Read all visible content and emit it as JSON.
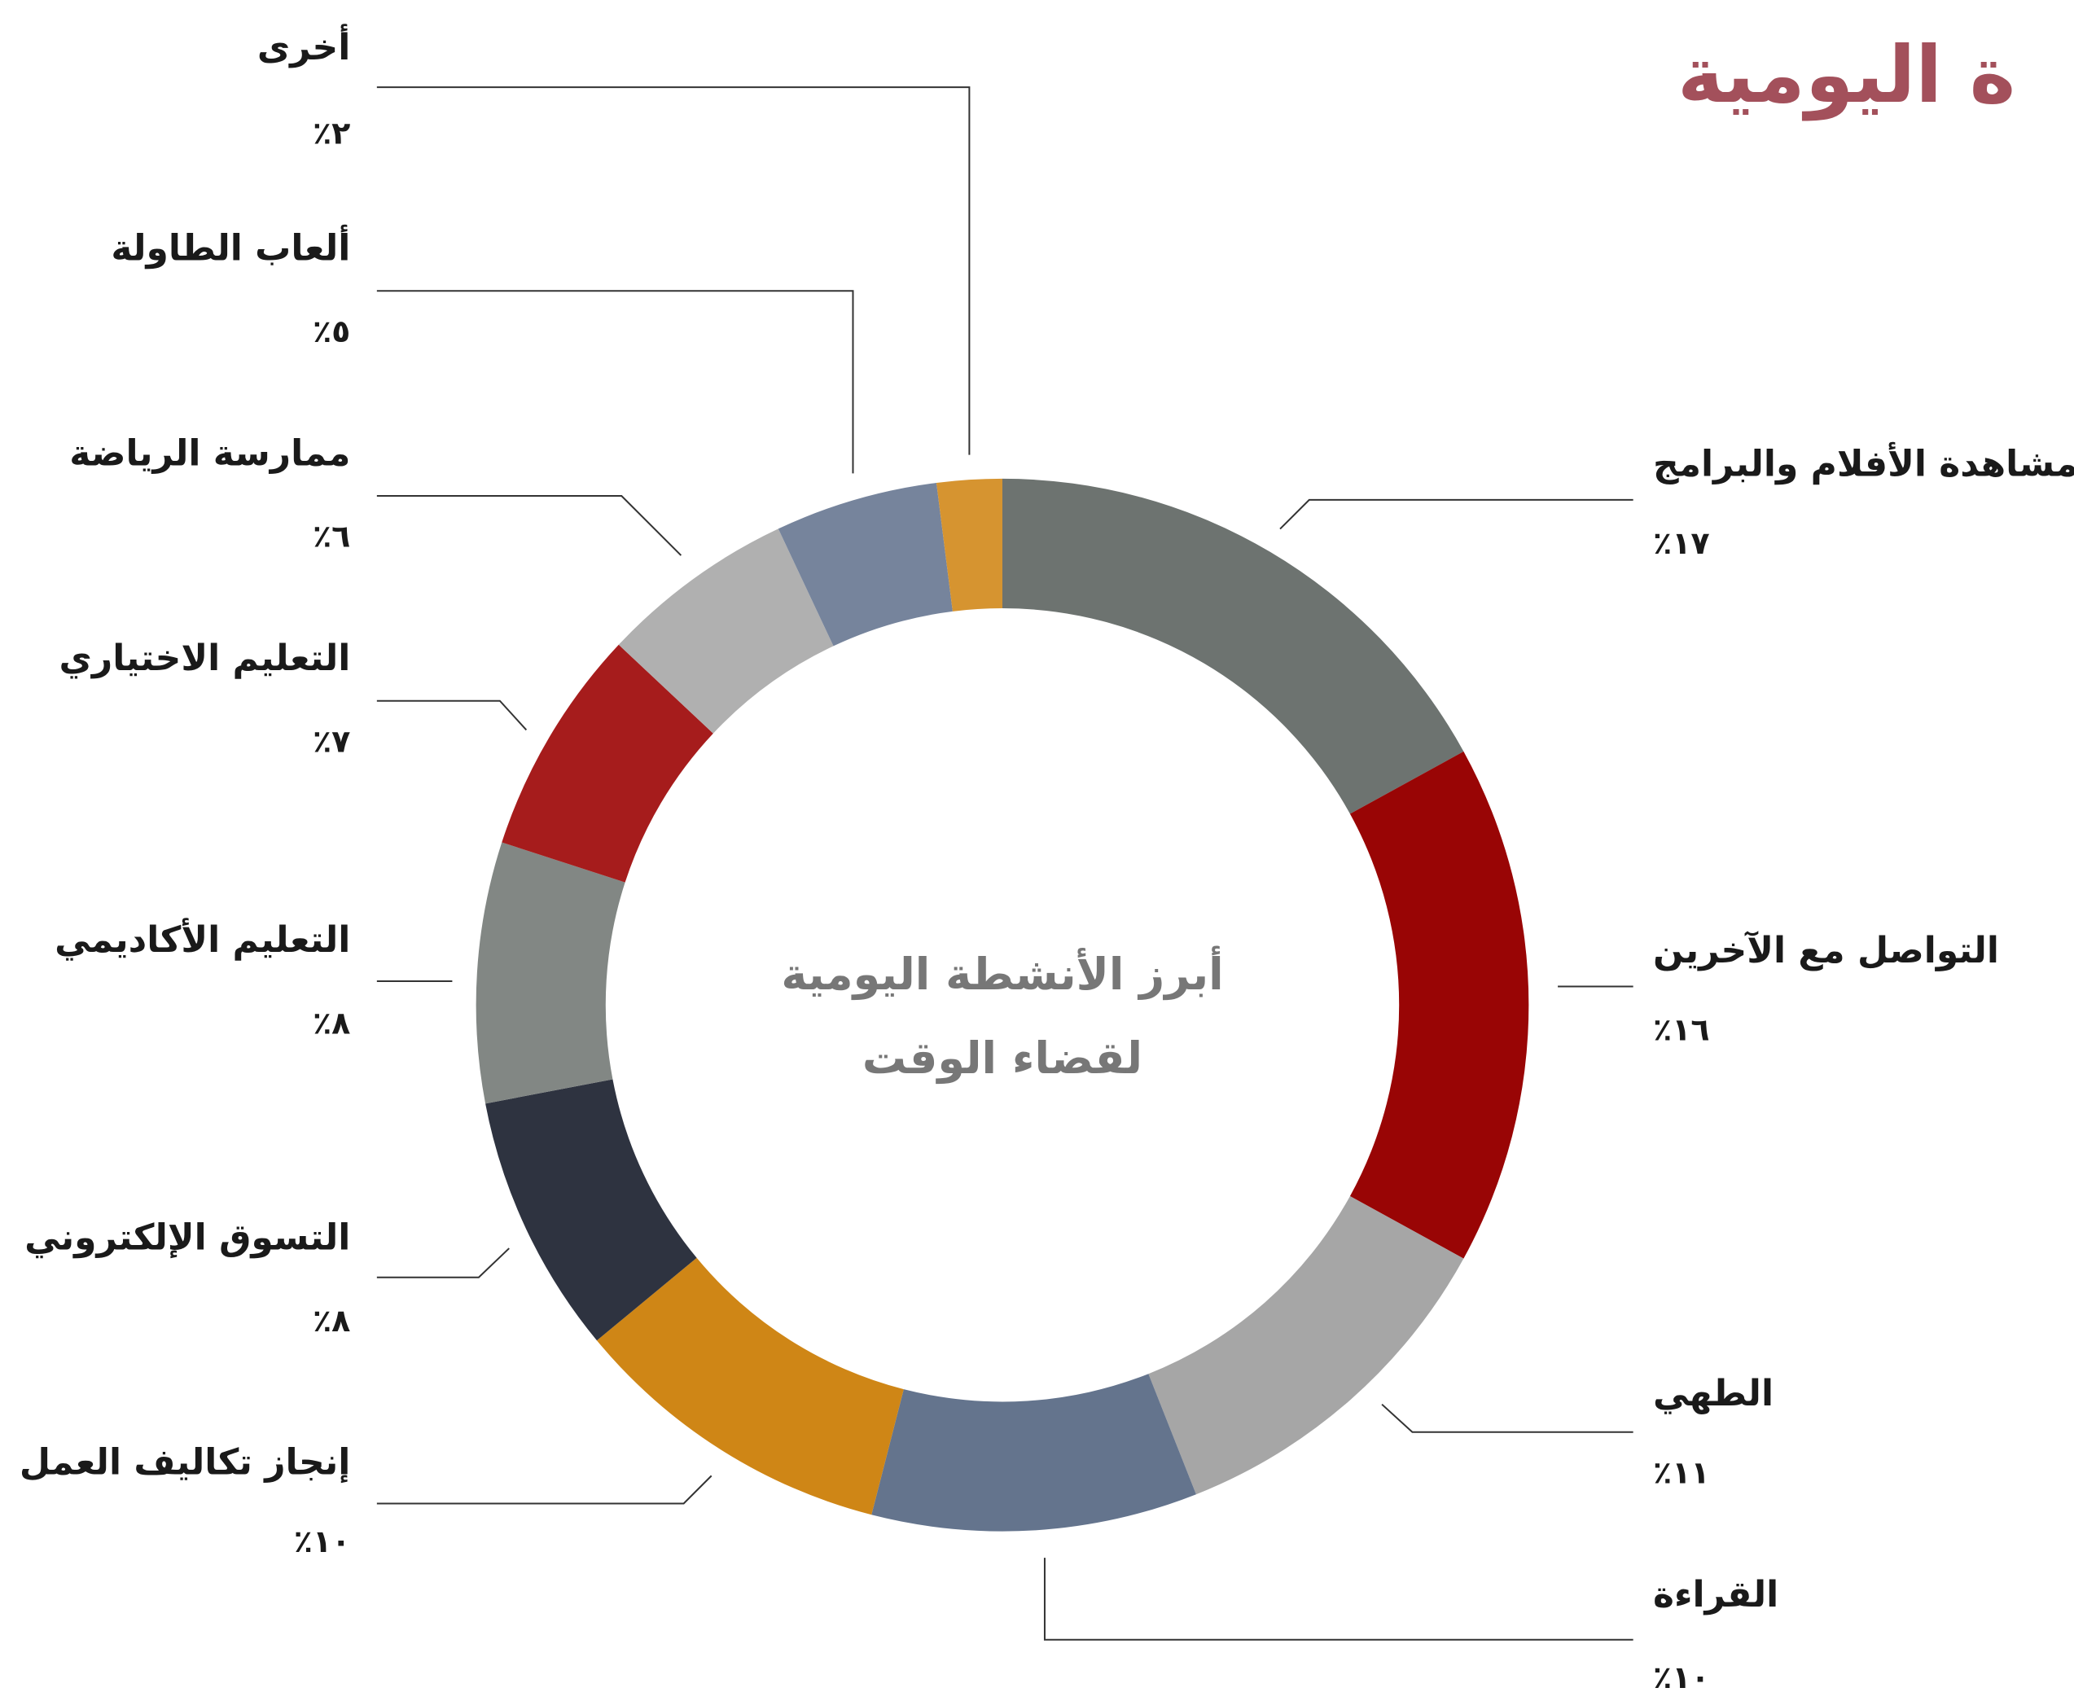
{
  "chart_data": {
    "type": "donut",
    "title": "ة اليومية",
    "center_label": [
      "أبرز الأنشطة اليومية",
      "لقضاء الوقت"
    ],
    "categories": [
      "مشاهدة الأفلام والبرامج",
      "التواصل مع الآخرين",
      "الطهي",
      "القراءة",
      "إنجاز تكاليف العمل",
      "التسوق الإلكتروني",
      "التعليم الأكاديمي",
      "التعليم الاختياري",
      "ممارسة الرياضة",
      "ألعاب الطاولة",
      "أخرى"
    ],
    "values": [
      17,
      16,
      11,
      10,
      10,
      8,
      8,
      7,
      6,
      5,
      2
    ],
    "value_labels": [
      "١٧٪",
      "١٦٪",
      "١١٪",
      "١٠٪",
      "١٠٪",
      "٨٪",
      "٨٪",
      "٧٪",
      "٦٪",
      "٥٪",
      "٢٪"
    ],
    "colors": [
      "#6d7370",
      "#990505",
      "#a6a6a6",
      "#64748d",
      "#cf8616",
      "#2e3340",
      "#828784",
      "#a61c1c",
      "#b0b0b0",
      "#76849c",
      "#d69430"
    ]
  }
}
